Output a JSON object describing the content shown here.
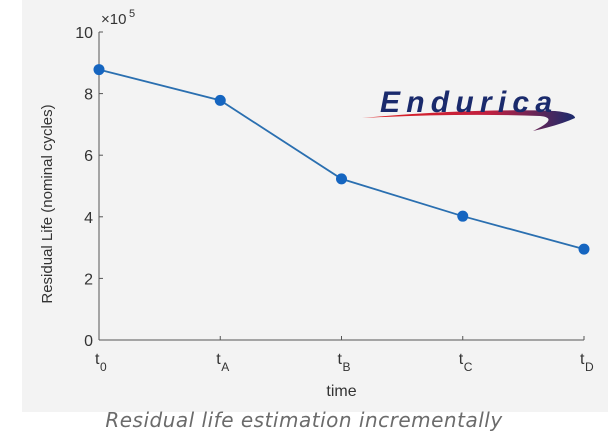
{
  "chart_data": {
    "type": "line",
    "title": "",
    "xlabel": "time",
    "ylabel": "Residual Life (nominal cycles)",
    "y_multiplier": "×10",
    "y_multiplier_exp": "5",
    "categories": [
      {
        "base": "t",
        "sub": "0"
      },
      {
        "base": "t",
        "sub": "A"
      },
      {
        "base": "t",
        "sub": "B"
      },
      {
        "base": "t",
        "sub": "C"
      },
      {
        "base": "t",
        "sub": "D"
      }
    ],
    "values": [
      8.78,
      7.78,
      5.23,
      4.02,
      2.95
    ],
    "value_units": "×10^5 cycles",
    "ylim": [
      0,
      10
    ],
    "yticks": [
      "0",
      "2",
      "4",
      "6",
      "8",
      "10"
    ],
    "grid": false,
    "series_color": "#1565c0",
    "line_color": "#2a6fb0"
  },
  "logo": {
    "text": "Endurica",
    "color": "#1a2a6c",
    "swoosh_color": "#e02020"
  },
  "caption": "Residual life estimation incrementally"
}
